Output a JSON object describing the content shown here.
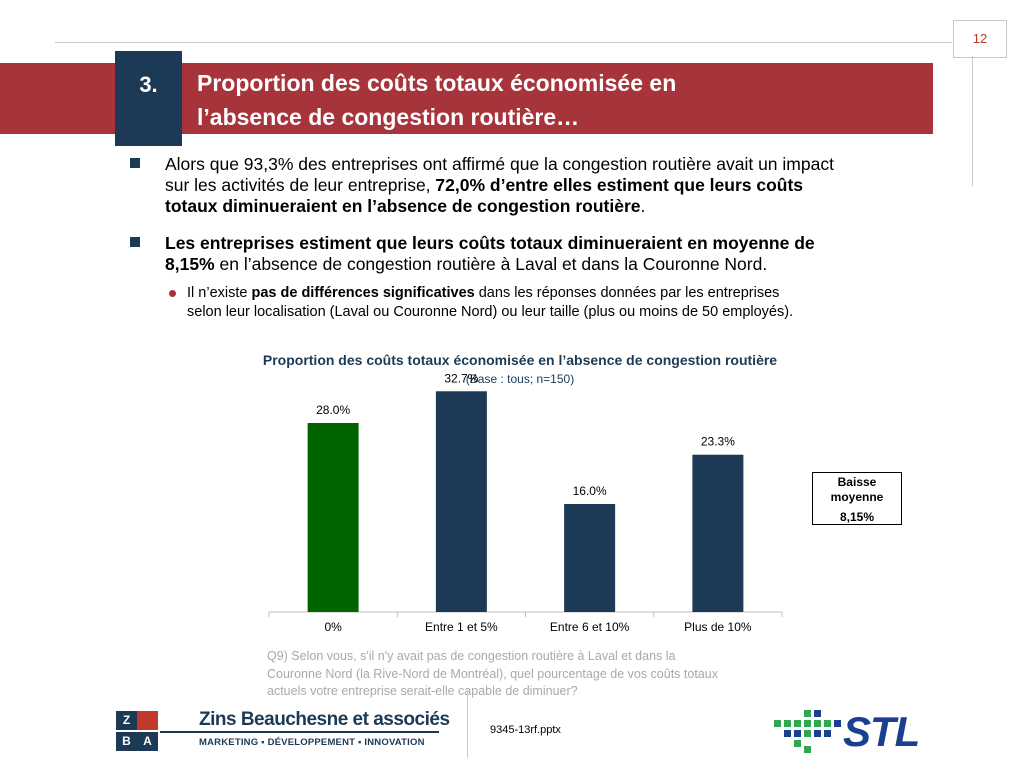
{
  "page_number": "12",
  "header": {
    "section_number": "3.",
    "title_line1": "Proportion des coûts totaux économisée en",
    "title_line2": "l’absence de congestion routière…"
  },
  "bullets": {
    "b1_line1": "Alors que 93,3% des entreprises ont affirmé que la congestion routière avait un impact",
    "b1_line2_plain": "sur les activités de leur entreprise, ",
    "b1_line2_bold": "72,0% d’entre elles estiment que leurs coûts",
    "b1_line3_bold": "totaux diminueraient en l’absence de congestion routière",
    "b1_line3_end": ".",
    "b2_line1_bold": "Les entreprises estiment que leurs coûts totaux diminueraient en moyenne de",
    "b2_line2_bold": "8,15%",
    "b2_line2_plain": " en l’absence de congestion routière à Laval et dans la Couronne Nord.",
    "sub1_pre": "Il n’existe ",
    "sub1_bold": "pas de différences significatives",
    "sub1_post": " dans les réponses données par les entreprises",
    "sub1_line2": "selon leur localisation (Laval ou Couronne Nord) ou leur taille (plus ou moins de 50 employés)."
  },
  "chart_data": {
    "type": "bar",
    "title": "Proportion des coûts totaux économisée en l’absence de congestion routière",
    "subtitle": "(Base : tous; n=150)",
    "categories": [
      "0%",
      "Entre 1 et 5%",
      "Entre 6 et 10%",
      "Plus de 10%"
    ],
    "values": [
      28.0,
      32.7,
      16.0,
      23.3
    ],
    "value_labels": [
      "28.0%",
      "32.7%",
      "16.0%",
      "23.3%"
    ],
    "colors": [
      "#006400",
      "#1c3a55",
      "#1c3a55",
      "#1c3a55"
    ],
    "ylim": [
      0,
      40
    ],
    "grid": false,
    "legend": "none"
  },
  "average_box": {
    "label_line1": "Baisse",
    "label_line2": "moyenne",
    "value": "8,15%"
  },
  "question_note": {
    "line1": "Q9) Selon vous, s'il n'y avait pas de congestion routière à Laval et dans la",
    "line2": "Couronne Nord (la Rive-Nord de Montréal), quel pourcentage de vos coûts totaux",
    "line3": "actuels votre entreprise serait-elle capable de diminuer?"
  },
  "footer": {
    "filename": "9345-13rf.pptx",
    "zba_letters": [
      "Z",
      "",
      "B",
      "A"
    ],
    "zba_name": "Zins Beauchesne et associés",
    "zba_tagline": "MARKETING ▪ DÉVELOPPEMENT ▪ INNOVATION",
    "stl": "STL"
  },
  "colors": {
    "banner": "#a8343b",
    "navy": "#1c3a55",
    "green_bar": "#006400",
    "note_gray": "#a9a9a9"
  }
}
